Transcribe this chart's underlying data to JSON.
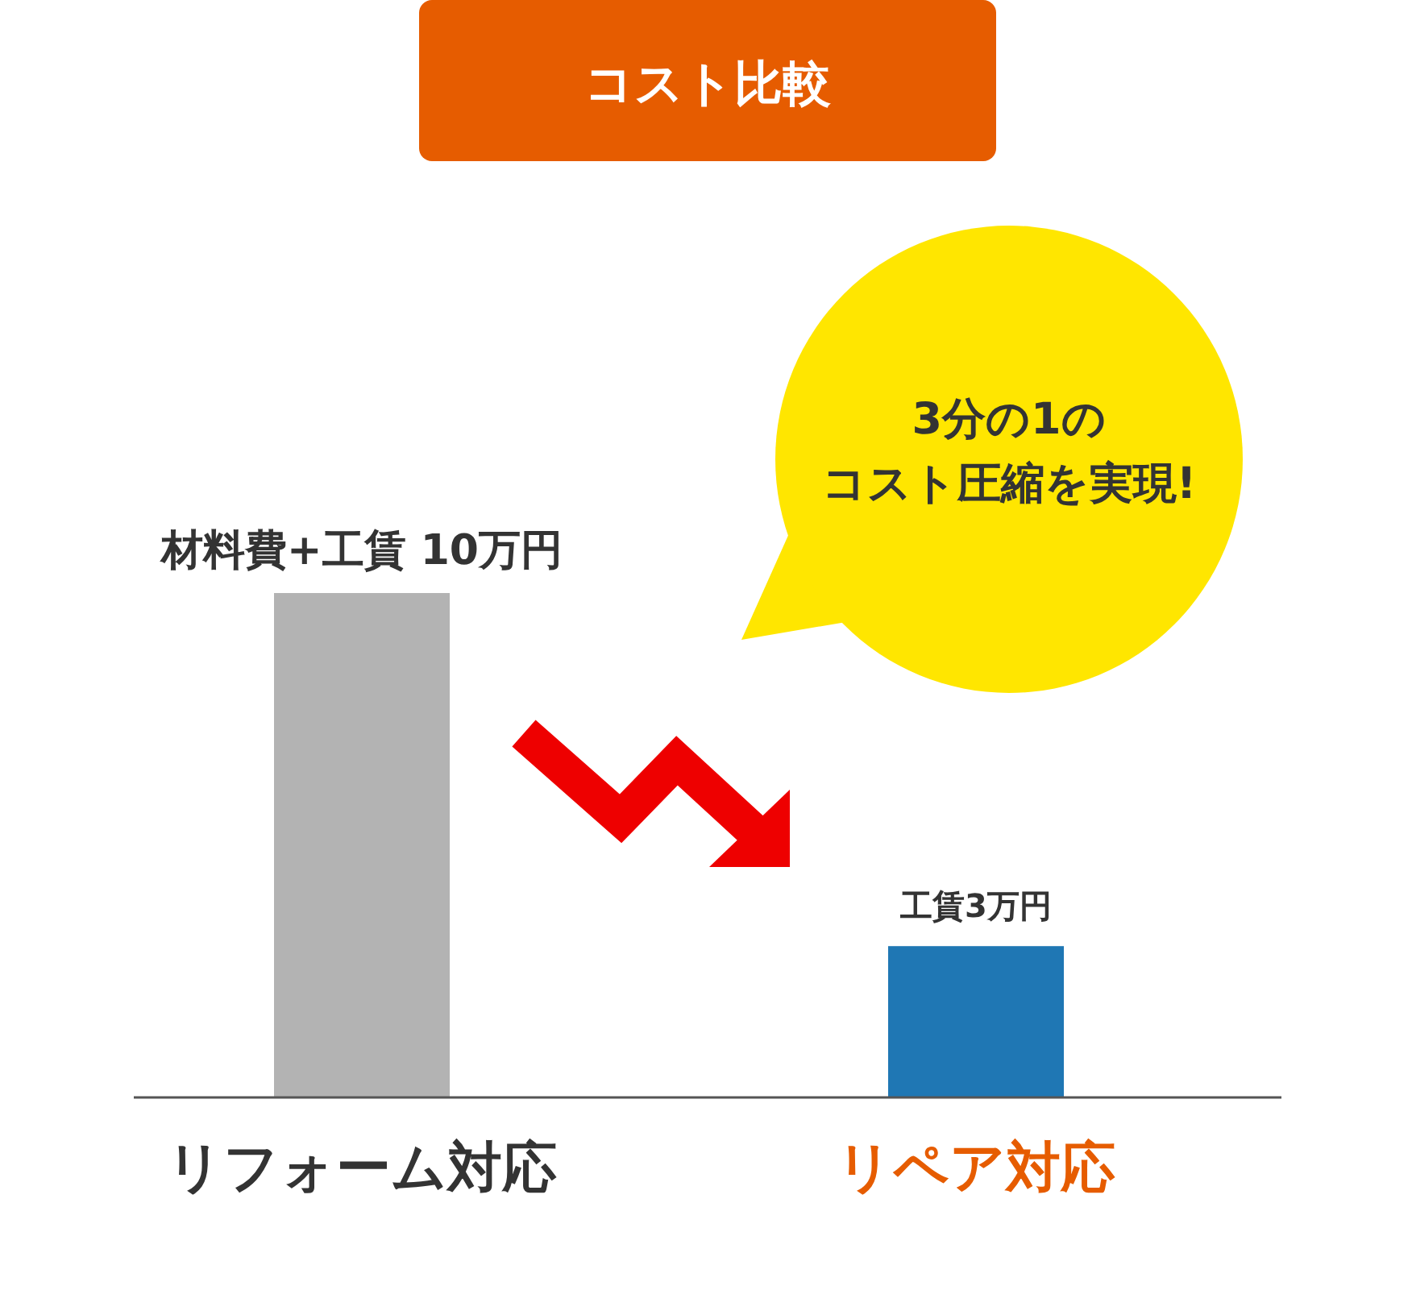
{
  "chart_data": {
    "type": "bar",
    "title": "コスト比較",
    "categories": [
      "リフォーム対応",
      "リペア対応"
    ],
    "values": [
      10,
      3
    ],
    "colors": [
      "#b3b3b3",
      "#1f77b4"
    ],
    "value_labels": [
      "材料費+工賃 10万円",
      "工賃3万円"
    ],
    "annotations": [
      "3分の1の",
      "コスト圧縮を実現!"
    ]
  }
}
